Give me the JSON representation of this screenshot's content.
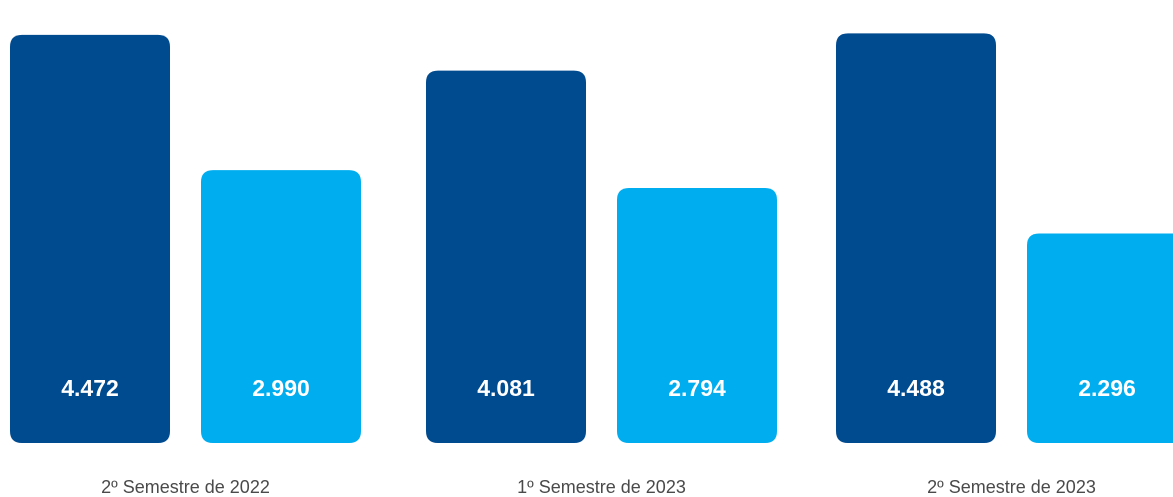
{
  "chart_data": {
    "type": "bar",
    "categories": [
      "2º Semestre de 2022",
      "1º Semestre de 2023",
      "2º Semestre de 2023"
    ],
    "series": [
      {
        "values": [
          4472,
          4081,
          4488
        ],
        "labels": [
          "4.472",
          "4.081",
          "4.488"
        ],
        "color": "#004a8f"
      },
      {
        "values": [
          2990,
          2794,
          2296
        ],
        "labels": [
          "2.990",
          "2.794",
          "2.296"
        ],
        "color": "#00adef"
      }
    ],
    "ylim": [
      0,
      4690
    ],
    "grid": false,
    "legend": "none"
  }
}
